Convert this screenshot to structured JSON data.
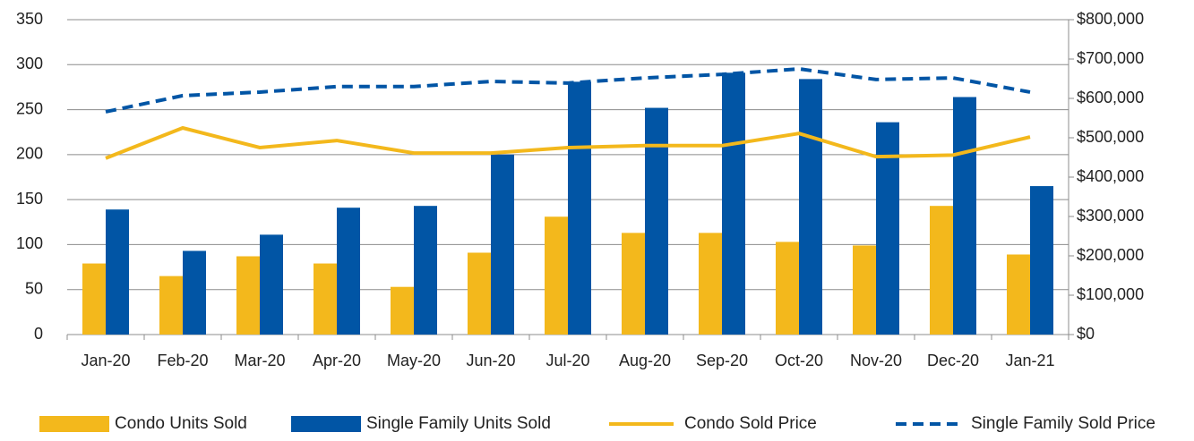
{
  "chart_data": {
    "type": "bar",
    "categories": [
      "Jan-20",
      "Feb-20",
      "Mar-20",
      "Apr-20",
      "May-20",
      "Jun-20",
      "Jul-20",
      "Aug-20",
      "Sep-20",
      "Oct-20",
      "Nov-20",
      "Dec-20",
      "Jan-21"
    ],
    "series": [
      {
        "name": "Condo Units Sold",
        "type": "bar",
        "color": "#f3b81c",
        "values": [
          79,
          65,
          87,
          79,
          53,
          91,
          131,
          113,
          113,
          103,
          99,
          143,
          89
        ]
      },
      {
        "name": "Single Family Units Sold",
        "type": "bar",
        "color": "#0155a5",
        "values": [
          139,
          93,
          111,
          141,
          143,
          200,
          281,
          252,
          291,
          284,
          236,
          264,
          165
        ]
      },
      {
        "name": "Condo Sold Price",
        "type": "line",
        "axis": "y2",
        "color": "#f3b81c",
        "values": [
          448000,
          525000,
          475000,
          493000,
          461000,
          461000,
          475000,
          480000,
          480000,
          511000,
          452000,
          456000,
          502000
        ]
      },
      {
        "name": "Single Family Sold Price",
        "type": "line",
        "dashed": true,
        "axis": "y2",
        "color": "#0155a5",
        "values": [
          566000,
          607000,
          616000,
          630000,
          630000,
          643000,
          639000,
          652000,
          661000,
          675000,
          648000,
          652000,
          616000
        ]
      }
    ],
    "ylim": [
      0,
      350
    ],
    "yticks": [
      0,
      50,
      100,
      150,
      200,
      250,
      300,
      350
    ],
    "y2lim": [
      0,
      800000
    ],
    "y2ticks": [
      {
        "value": 0,
        "label": "$0"
      },
      {
        "value": 100000,
        "label": "$100,000"
      },
      {
        "value": 200000,
        "label": "$200,000"
      },
      {
        "value": 300000,
        "label": "$300,000"
      },
      {
        "value": 400000,
        "label": "$400,000"
      },
      {
        "value": 500000,
        "label": "$500,000"
      },
      {
        "value": 600000,
        "label": "$600,000"
      },
      {
        "value": 700000,
        "label": "$700,000"
      },
      {
        "value": 800000,
        "label": "$800,000"
      }
    ],
    "grid": true,
    "legend": "bottom"
  }
}
